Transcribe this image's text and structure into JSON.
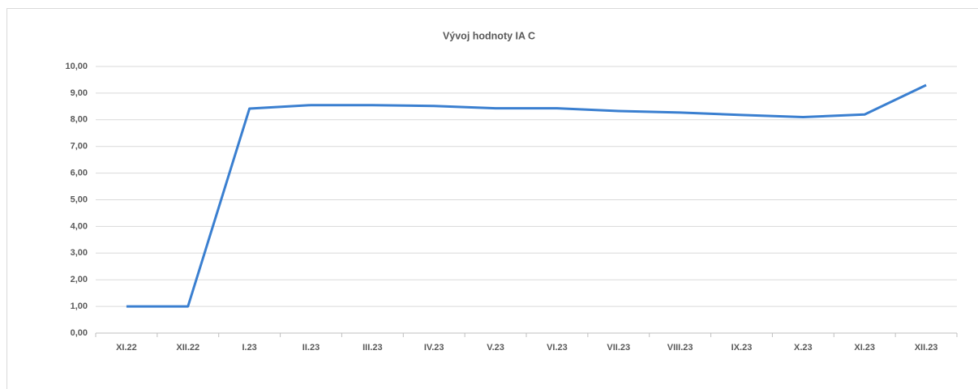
{
  "chart_data": {
    "type": "line",
    "title": "Vývoj hodnoty IA C",
    "categories": [
      "XI.22",
      "XII.22",
      "I.23",
      "II.23",
      "III.23",
      "IV.23",
      "V.23",
      "VI.23",
      "VII.23",
      "VIII.23",
      "IX.23",
      "X.23",
      "XI.23",
      "XII.23"
    ],
    "series": [
      {
        "color": "#3a7fd0",
        "values": [
          1.0,
          1.0,
          8.42,
          8.55,
          8.55,
          8.52,
          8.43,
          8.43,
          8.33,
          8.27,
          8.18,
          8.1,
          8.2,
          9.3
        ]
      }
    ],
    "ylim": [
      0,
      10
    ],
    "yticks": [
      {
        "value": 0,
        "label": "0,00"
      },
      {
        "value": 1,
        "label": "1,00"
      },
      {
        "value": 2,
        "label": "2,00"
      },
      {
        "value": 3,
        "label": "3,00"
      },
      {
        "value": 4,
        "label": "4,00"
      },
      {
        "value": 5,
        "label": "5,00"
      },
      {
        "value": 6,
        "label": "6,00"
      },
      {
        "value": 7,
        "label": "7,00"
      },
      {
        "value": 8,
        "label": "8,00"
      },
      {
        "value": 9,
        "label": "9,00"
      },
      {
        "value": 10,
        "label": "10,00"
      }
    ],
    "grid": true
  }
}
